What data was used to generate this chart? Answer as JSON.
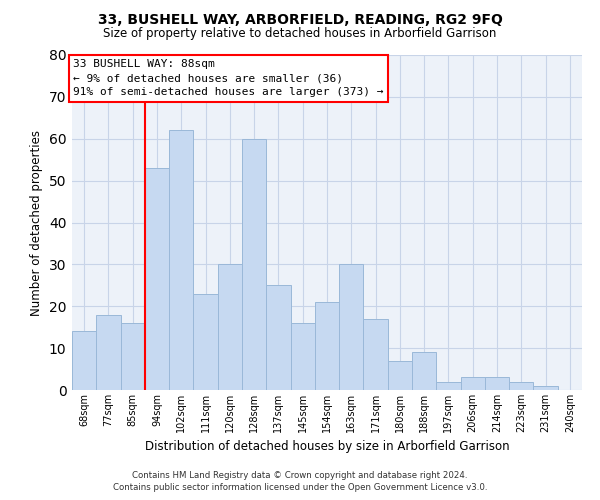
{
  "title": "33, BUSHELL WAY, ARBORFIELD, READING, RG2 9FQ",
  "subtitle": "Size of property relative to detached houses in Arborfield Garrison",
  "xlabel": "Distribution of detached houses by size in Arborfield Garrison",
  "ylabel": "Number of detached properties",
  "bar_labels": [
    "68sqm",
    "77sqm",
    "85sqm",
    "94sqm",
    "102sqm",
    "111sqm",
    "120sqm",
    "128sqm",
    "137sqm",
    "145sqm",
    "154sqm",
    "163sqm",
    "171sqm",
    "180sqm",
    "188sqm",
    "197sqm",
    "206sqm",
    "214sqm",
    "223sqm",
    "231sqm",
    "240sqm"
  ],
  "bar_values": [
    14,
    18,
    16,
    53,
    62,
    23,
    30,
    60,
    25,
    16,
    21,
    30,
    17,
    7,
    9,
    2,
    3,
    3,
    2,
    1,
    0
  ],
  "bar_color": "#c6d9f1",
  "bar_edge_color": "#9ab8d8",
  "vline_x_index": 2,
  "vline_color": "red",
  "ylim": [
    0,
    80
  ],
  "yticks": [
    0,
    10,
    20,
    30,
    40,
    50,
    60,
    70,
    80
  ],
  "annotation_title": "33 BUSHELL WAY: 88sqm",
  "annotation_line1": "← 9% of detached houses are smaller (36)",
  "annotation_line2": "91% of semi-detached houses are larger (373) →",
  "annotation_box_color": "white",
  "annotation_box_edge": "red",
  "footnote1": "Contains HM Land Registry data © Crown copyright and database right 2024.",
  "footnote2": "Contains public sector information licensed under the Open Government Licence v3.0.",
  "bg_color": "white",
  "ax_bg_color": "#edf2f9",
  "grid_color": "#c8d4e8"
}
